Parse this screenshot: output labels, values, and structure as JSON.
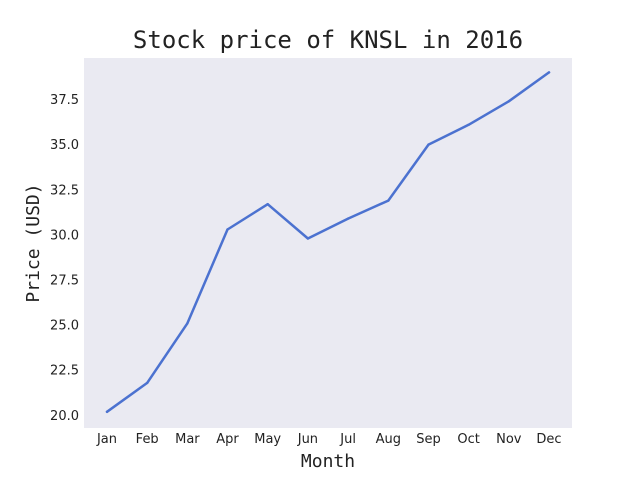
{
  "chart_data": {
    "type": "line",
    "title": "Stock price of KNSL in 2016",
    "xlabel": "Month",
    "ylabel": "Price (USD)",
    "categories": [
      "Jan",
      "Feb",
      "Mar",
      "Apr",
      "May",
      "Jun",
      "Jul",
      "Aug",
      "Sep",
      "Oct",
      "Nov",
      "Dec"
    ],
    "series": [
      {
        "values": [
          20.2,
          21.8,
          25.1,
          30.3,
          31.7,
          29.8,
          30.9,
          31.9,
          35.0,
          36.1,
          37.4,
          39.0
        ]
      }
    ],
    "yticks": [
      "20.0",
      "22.5",
      "25.0",
      "27.5",
      "30.0",
      "32.5",
      "35.0",
      "37.5"
    ],
    "ylim": [
      19.3,
      39.8
    ],
    "grid": false,
    "legend": "none",
    "colors": {
      "plot_background": "#eaeaf2",
      "line": "#4c72d0"
    }
  }
}
